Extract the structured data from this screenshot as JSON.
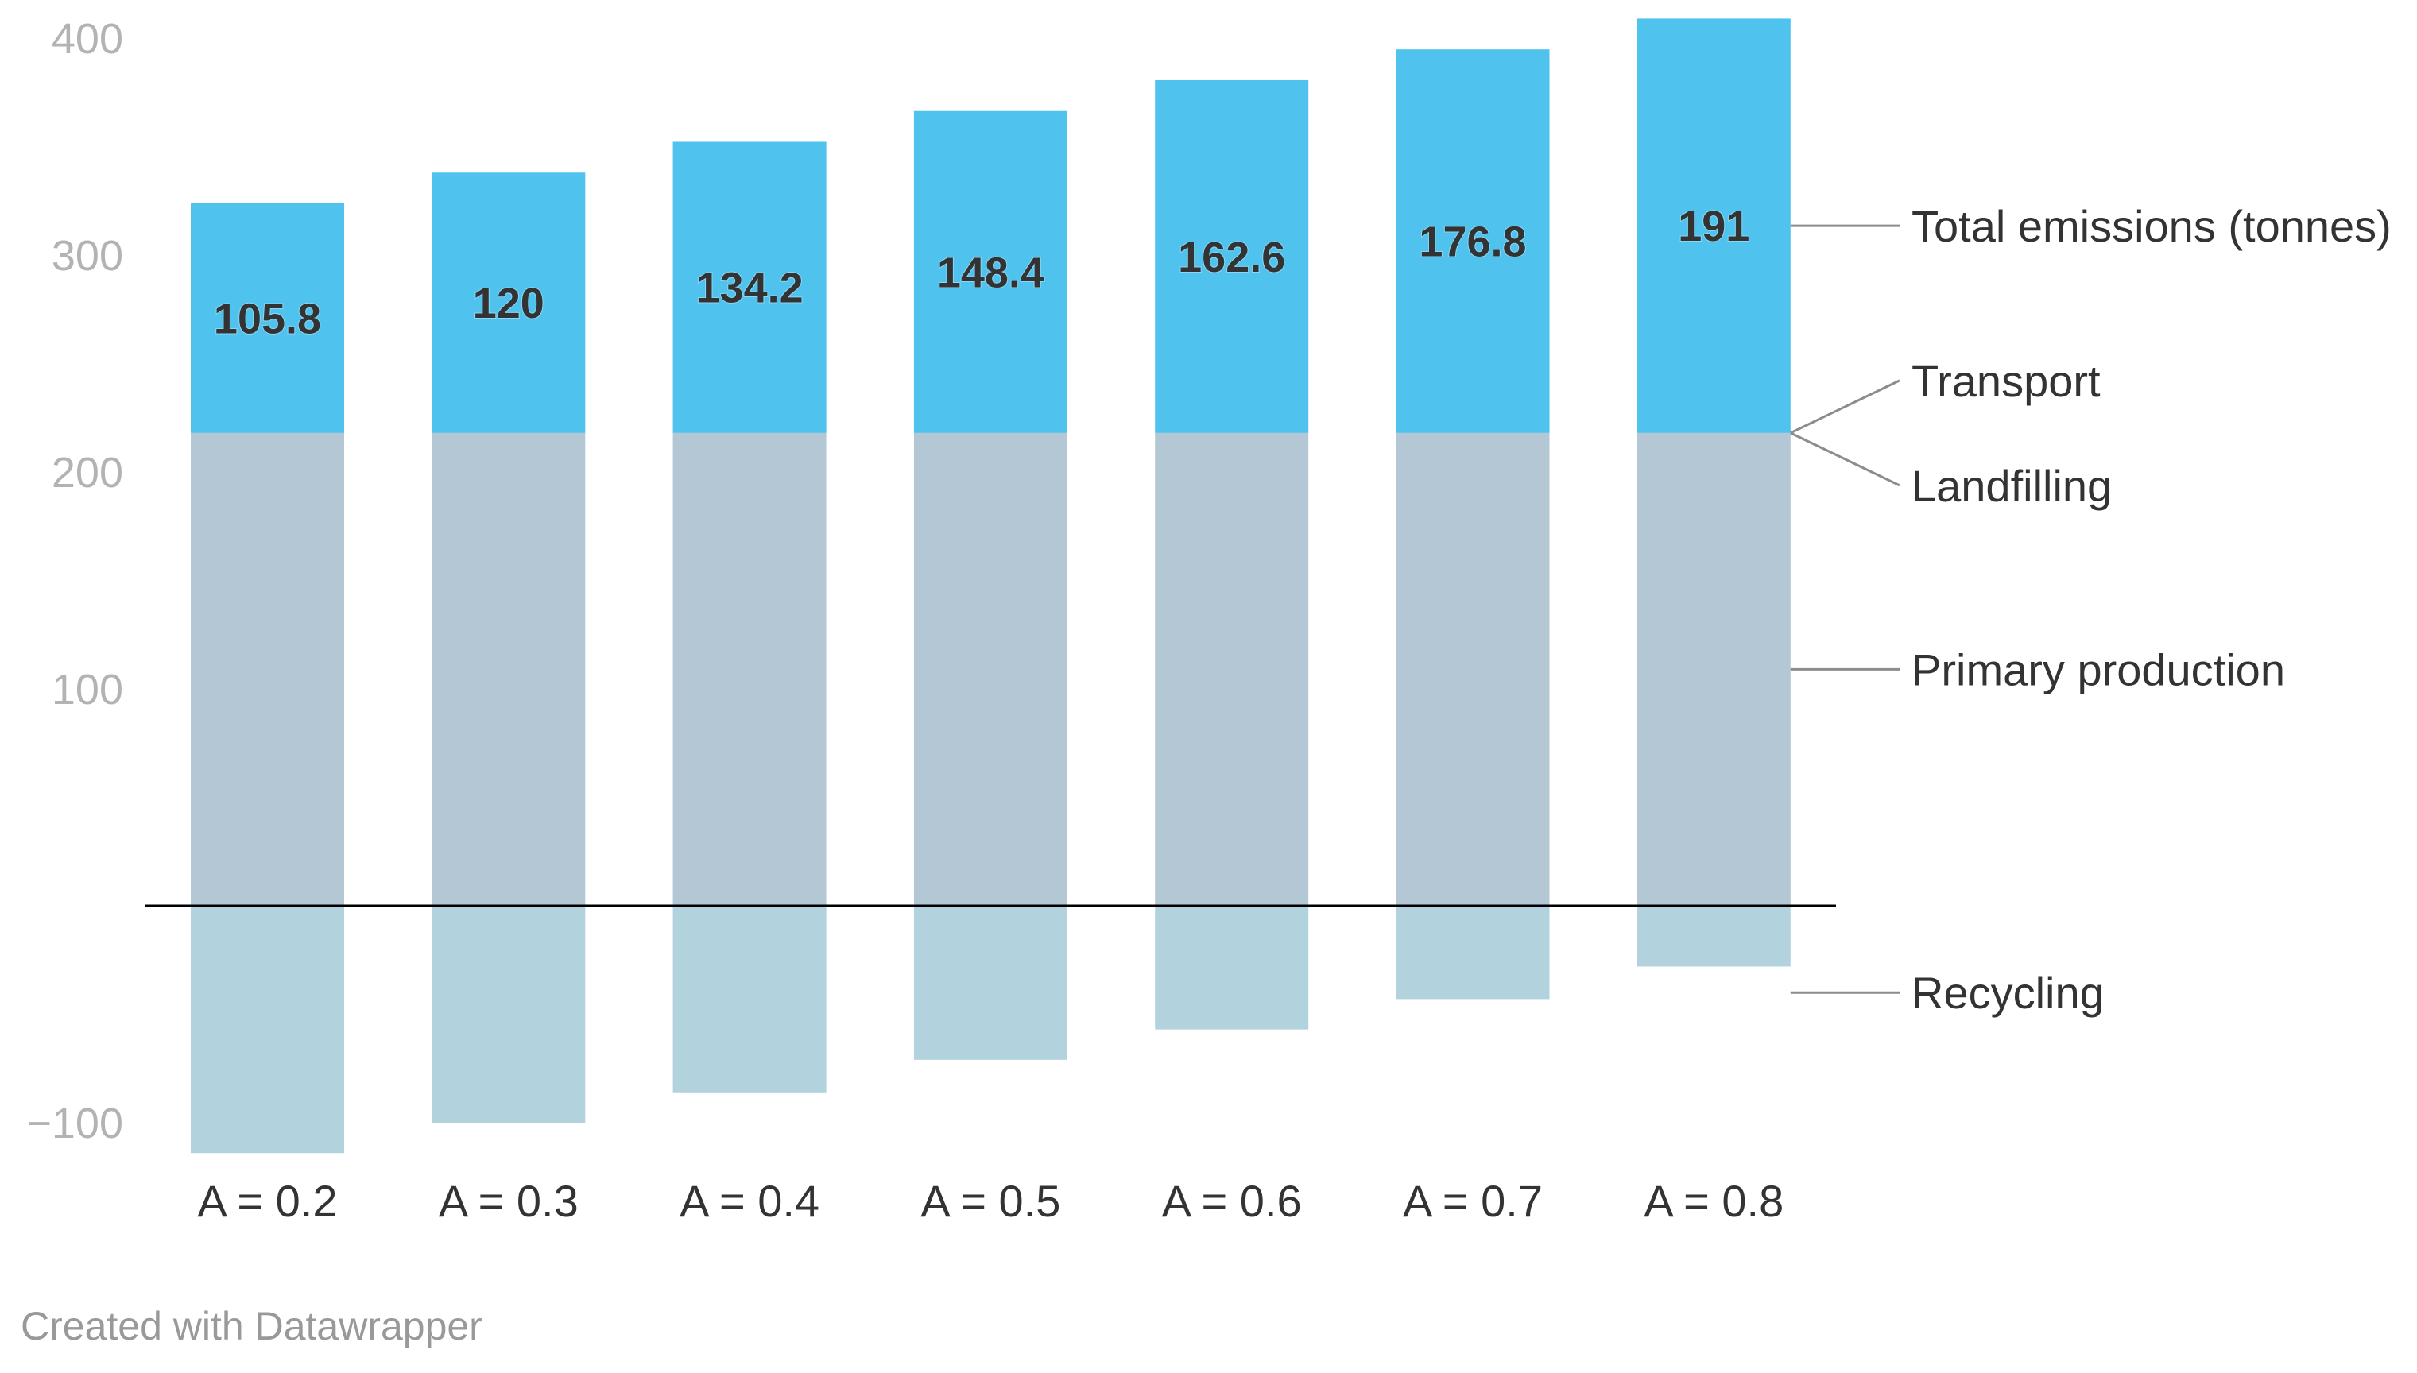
{
  "chart_data": {
    "type": "bar",
    "stacked": true,
    "categories": [
      "A = 0.2",
      "A = 0.3",
      "A = 0.4",
      "A = 0.5",
      "A = 0.6",
      "A = 0.7",
      "A = 0.8"
    ],
    "series": [
      {
        "name": "Recycling",
        "values": [
          -114,
          -100,
          -86,
          -71,
          -57,
          -43,
          -28
        ],
        "color": "#b2d3de"
      },
      {
        "name": "Primary production",
        "values": [
          218,
          218,
          218,
          218,
          218,
          218,
          218
        ],
        "color": "#b3c7d4"
      },
      {
        "name": "Landfilling",
        "values": [
          0,
          0,
          0,
          0,
          0,
          0,
          0
        ],
        "color": "#b3c7d4"
      },
      {
        "name": "Transport",
        "values": [
          0,
          0,
          0,
          0,
          0,
          0,
          0
        ],
        "color": "#4fc2ee"
      },
      {
        "name": "Total emissions (tonnes)",
        "values": [
          105.8,
          120,
          134.2,
          148.4,
          162.6,
          176.8,
          191
        ],
        "color": "#4fc2ee"
      }
    ],
    "data_labels": [
      "105.8",
      "120",
      "134.2",
      "148.4",
      "162.6",
      "176.8",
      "191"
    ],
    "yticks": [
      {
        "value": 400,
        "label": "400"
      },
      {
        "value": 300,
        "label": "300"
      },
      {
        "value": 200,
        "label": "200"
      },
      {
        "value": 100,
        "label": "100"
      },
      {
        "value": -100,
        "label": "−100"
      }
    ],
    "ylim": [
      -120,
      410
    ],
    "grid": false,
    "legend": "direct labels on right"
  },
  "footer": "Created with Datawrapper"
}
